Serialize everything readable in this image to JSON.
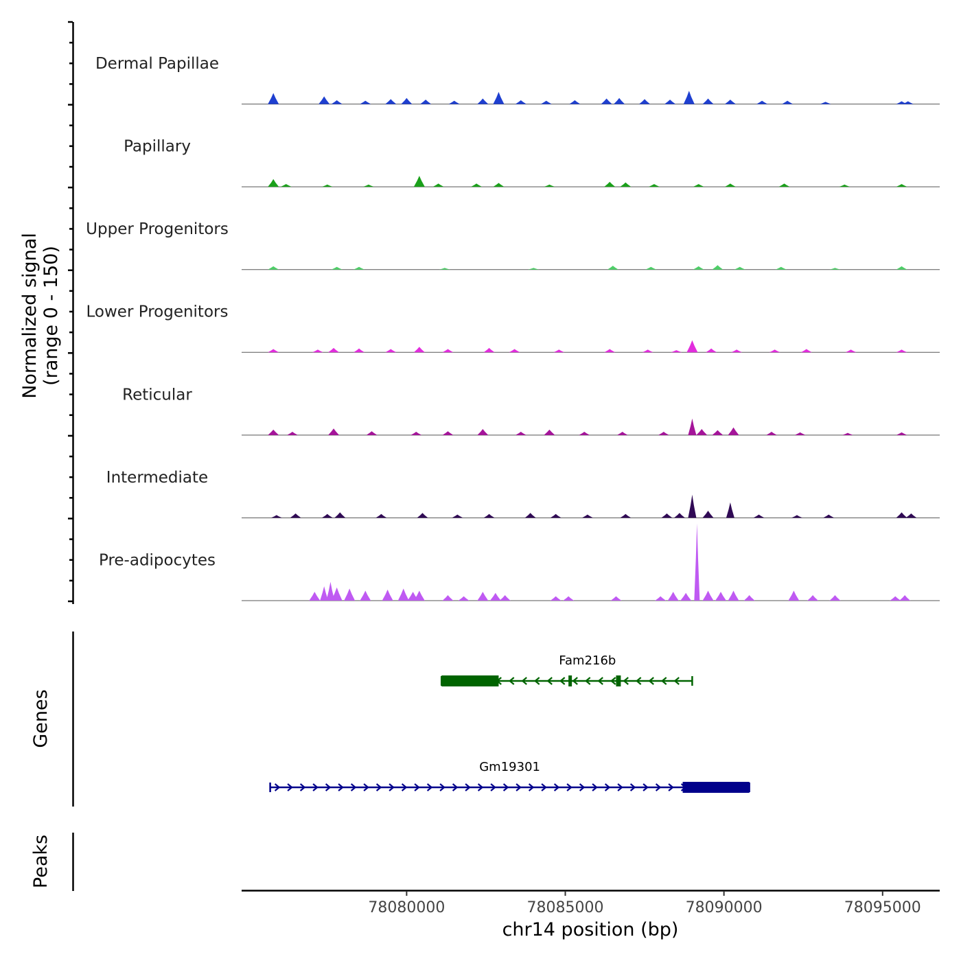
{
  "chart_data": {
    "type": "area",
    "title": "",
    "chromosome": "chr14",
    "xlabel": "chr14 position (bp)",
    "xlim": [
      78074800,
      78096800
    ],
    "xticks": [
      78080000,
      78085000,
      78090000,
      78095000
    ],
    "xtick_labels": [
      "78080000",
      "78085000",
      "78090000",
      "78095000"
    ],
    "coverage": {
      "ylabel_line1": "Normalized signal",
      "ylabel_line2": "(range 0 - 150)",
      "ylim": [
        0,
        150
      ],
      "series": [
        {
          "name": "Dermal Papillae",
          "color": "#1E3FD0",
          "values": [
            [
              78075800,
              20
            ],
            [
              78077400,
              14
            ],
            [
              78077800,
              7
            ],
            [
              78078700,
              6
            ],
            [
              78079500,
              9
            ],
            [
              78080000,
              11
            ],
            [
              78080600,
              8
            ],
            [
              78081500,
              6
            ],
            [
              78082400,
              10
            ],
            [
              78082900,
              22
            ],
            [
              78083600,
              7
            ],
            [
              78084400,
              6
            ],
            [
              78085300,
              7
            ],
            [
              78086300,
              10
            ],
            [
              78086700,
              11
            ],
            [
              78087500,
              9
            ],
            [
              78088300,
              8
            ],
            [
              78088900,
              24
            ],
            [
              78089500,
              10
            ],
            [
              78090200,
              8
            ],
            [
              78091200,
              6
            ],
            [
              78092000,
              6
            ],
            [
              78093200,
              4
            ],
            [
              78095600,
              5
            ],
            [
              78095800,
              5
            ]
          ]
        },
        {
          "name": "Papillary",
          "color": "#1AA01A",
          "values": [
            [
              78075800,
              14
            ],
            [
              78076200,
              5
            ],
            [
              78077500,
              4
            ],
            [
              78078800,
              4
            ],
            [
              78080400,
              20
            ],
            [
              78081000,
              6
            ],
            [
              78082200,
              6
            ],
            [
              78082900,
              7
            ],
            [
              78084500,
              4
            ],
            [
              78086400,
              9
            ],
            [
              78086900,
              8
            ],
            [
              78087800,
              5
            ],
            [
              78089200,
              5
            ],
            [
              78090200,
              6
            ],
            [
              78091900,
              6
            ],
            [
              78093800,
              4
            ],
            [
              78095600,
              5
            ]
          ]
        },
        {
          "name": "Upper Progenitors",
          "color": "#4ECF68",
          "values": [
            [
              78075800,
              6
            ],
            [
              78077800,
              5
            ],
            [
              78078500,
              5
            ],
            [
              78081200,
              3
            ],
            [
              78084000,
              3
            ],
            [
              78086500,
              7
            ],
            [
              78087700,
              5
            ],
            [
              78089200,
              6
            ],
            [
              78089800,
              8
            ],
            [
              78090500,
              5
            ],
            [
              78091800,
              5
            ],
            [
              78093500,
              3
            ],
            [
              78095600,
              6
            ]
          ]
        },
        {
          "name": "Lower Progenitors",
          "color": "#E22DDD",
          "values": [
            [
              78075800,
              6
            ],
            [
              78077200,
              5
            ],
            [
              78077700,
              8
            ],
            [
              78078500,
              7
            ],
            [
              78079500,
              6
            ],
            [
              78080400,
              10
            ],
            [
              78081300,
              6
            ],
            [
              78082600,
              8
            ],
            [
              78083400,
              6
            ],
            [
              78084800,
              5
            ],
            [
              78086400,
              6
            ],
            [
              78087600,
              5
            ],
            [
              78088500,
              4
            ],
            [
              78089000,
              22
            ],
            [
              78089600,
              7
            ],
            [
              78090400,
              5
            ],
            [
              78091600,
              5
            ],
            [
              78092600,
              6
            ],
            [
              78094000,
              5
            ],
            [
              78095600,
              5
            ]
          ]
        },
        {
          "name": "Reticular",
          "color": "#A5149A",
          "values": [
            [
              78075800,
              10
            ],
            [
              78076400,
              6
            ],
            [
              78077700,
              12
            ],
            [
              78078900,
              7
            ],
            [
              78080300,
              6
            ],
            [
              78081300,
              7
            ],
            [
              78082400,
              11
            ],
            [
              78083600,
              6
            ],
            [
              78084500,
              10
            ],
            [
              78085600,
              6
            ],
            [
              78086800,
              6
            ],
            [
              78088100,
              6
            ],
            [
              78089000,
              30
            ],
            [
              78089300,
              11
            ],
            [
              78089800,
              9
            ],
            [
              78090300,
              14
            ],
            [
              78091500,
              6
            ],
            [
              78092400,
              5
            ],
            [
              78093900,
              4
            ],
            [
              78095600,
              5
            ]
          ]
        },
        {
          "name": "Intermediate",
          "color": "#300A55",
          "values": [
            [
              78075900,
              5
            ],
            [
              78076500,
              8
            ],
            [
              78077500,
              7
            ],
            [
              78077900,
              10
            ],
            [
              78079200,
              7
            ],
            [
              78080500,
              9
            ],
            [
              78081600,
              6
            ],
            [
              78082600,
              7
            ],
            [
              78083900,
              9
            ],
            [
              78084700,
              7
            ],
            [
              78085700,
              6
            ],
            [
              78086900,
              7
            ],
            [
              78088200,
              8
            ],
            [
              78088600,
              9
            ],
            [
              78089000,
              42
            ],
            [
              78089500,
              13
            ],
            [
              78090200,
              28
            ],
            [
              78091100,
              6
            ],
            [
              78092300,
              5
            ],
            [
              78093300,
              6
            ],
            [
              78095600,
              10
            ],
            [
              78095900,
              8
            ]
          ]
        },
        {
          "name": "Pre-adipocytes",
          "color": "#BF5AF2",
          "values": [
            [
              78077100,
              16
            ],
            [
              78077400,
              26
            ],
            [
              78077600,
              34
            ],
            [
              78077800,
              24
            ],
            [
              78078200,
              22
            ],
            [
              78078700,
              18
            ],
            [
              78079400,
              20
            ],
            [
              78079900,
              22
            ],
            [
              78080200,
              16
            ],
            [
              78080400,
              18
            ],
            [
              78081300,
              10
            ],
            [
              78081800,
              8
            ],
            [
              78082400,
              16
            ],
            [
              78082800,
              14
            ],
            [
              78083100,
              10
            ],
            [
              78084700,
              8
            ],
            [
              78085100,
              8
            ],
            [
              78086600,
              8
            ],
            [
              78088000,
              8
            ],
            [
              78088400,
              16
            ],
            [
              78088800,
              14
            ],
            [
              78089150,
              140
            ],
            [
              78089500,
              18
            ],
            [
              78089900,
              16
            ],
            [
              78090300,
              18
            ],
            [
              78090800,
              10
            ],
            [
              78092200,
              18
            ],
            [
              78092800,
              10
            ],
            [
              78093500,
              10
            ],
            [
              78095400,
              8
            ],
            [
              78095700,
              10
            ]
          ]
        }
      ]
    },
    "genes": {
      "ylabel": "Genes",
      "items": [
        {
          "name": "Fam216b",
          "start": 78081100,
          "end": 78089000,
          "strand": "-",
          "color": "#006400",
          "exons": [
            [
              78081100,
              78082900
            ],
            [
              78085100,
              78085200
            ],
            [
              78086600,
              78086750
            ]
          ]
        },
        {
          "name": "Gm19301",
          "start": 78075700,
          "end": 78090800,
          "strand": "+",
          "color": "#00008B",
          "exons": [
            [
              78088700,
              78090800
            ]
          ]
        }
      ]
    },
    "peaks": {
      "ylabel": "Peaks",
      "items": []
    }
  }
}
